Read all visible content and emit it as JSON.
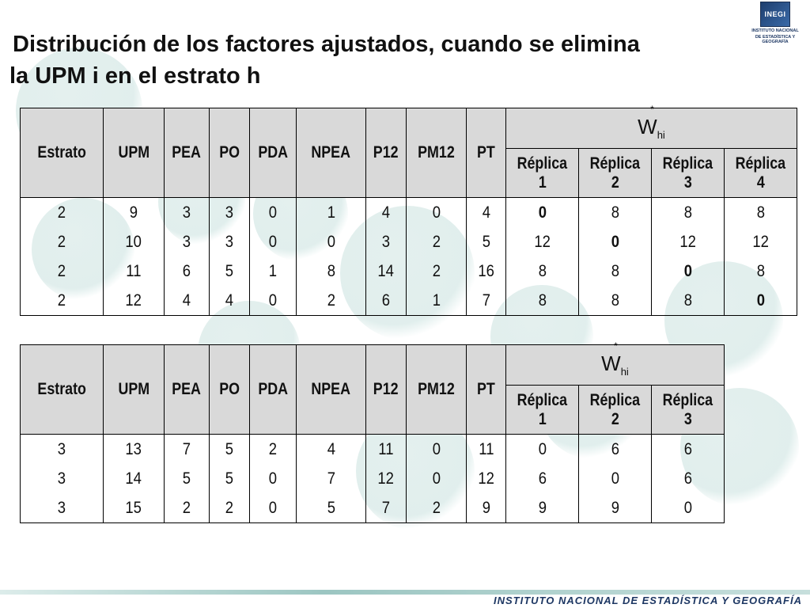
{
  "title": {
    "line1": "Distribución de los factores ajustados, cuando se elimina",
    "line2": "la UPM i en el estrato h"
  },
  "logo": {
    "mark": "INEGI",
    "caption_line1": "INSTITUTO NACIONAL",
    "caption_line2": "DE ESTADÍSTICA Y GEOGRAFÍA"
  },
  "footer": {
    "text": "INSTITUTO NACIONAL DE ESTADÍSTICA Y GEOGRAFÍA"
  },
  "weight_header": {
    "symbol": "W",
    "sub": "hi",
    "sup": "*"
  },
  "columns": [
    "Estrato",
    "UPM",
    "PEA",
    "PO",
    "PDA",
    "NPEA",
    "P12",
    "PM12",
    "PT"
  ],
  "table1": {
    "replicas": [
      {
        "line1": "Réplica",
        "line2": "1"
      },
      {
        "line1": "Réplica",
        "line2": "2"
      },
      {
        "line1": "Réplica",
        "line2": "3"
      },
      {
        "line1": "Réplica",
        "line2": "4"
      }
    ],
    "rows": [
      {
        "cells": [
          "2",
          "9",
          "3",
          "3",
          "0",
          "1",
          "4",
          "0",
          "4"
        ],
        "w": [
          "0",
          "8",
          "8",
          "8"
        ],
        "zero_index": 0
      },
      {
        "cells": [
          "2",
          "10",
          "3",
          "3",
          "0",
          "0",
          "3",
          "2",
          "5"
        ],
        "w": [
          "12",
          "0",
          "12",
          "12"
        ],
        "zero_index": 1
      },
      {
        "cells": [
          "2",
          "11",
          "6",
          "5",
          "1",
          "8",
          "14",
          "2",
          "16"
        ],
        "w": [
          "8",
          "8",
          "0",
          "8"
        ],
        "zero_index": 2
      },
      {
        "cells": [
          "2",
          "12",
          "4",
          "4",
          "0",
          "2",
          "6",
          "1",
          "7"
        ],
        "w": [
          "8",
          "8",
          "8",
          "0"
        ],
        "zero_index": 3
      }
    ]
  },
  "table2": {
    "replicas": [
      {
        "line1": "Réplica",
        "line2": "1"
      },
      {
        "line1": "Réplica",
        "line2": "2"
      },
      {
        "line1": "Réplica",
        "line2": "3"
      }
    ],
    "rows": [
      {
        "cells": [
          "3",
          "13",
          "7",
          "5",
          "2",
          "4",
          "11",
          "0",
          "11"
        ],
        "w": [
          "0",
          "6",
          "6"
        ]
      },
      {
        "cells": [
          "3",
          "14",
          "5",
          "5",
          "0",
          "7",
          "12",
          "0",
          "12"
        ],
        "w": [
          "6",
          "0",
          "6"
        ]
      },
      {
        "cells": [
          "3",
          "15",
          "2",
          "2",
          "0",
          "5",
          "7",
          "2",
          "9"
        ],
        "w": [
          "9",
          "9",
          "0"
        ]
      }
    ]
  }
}
